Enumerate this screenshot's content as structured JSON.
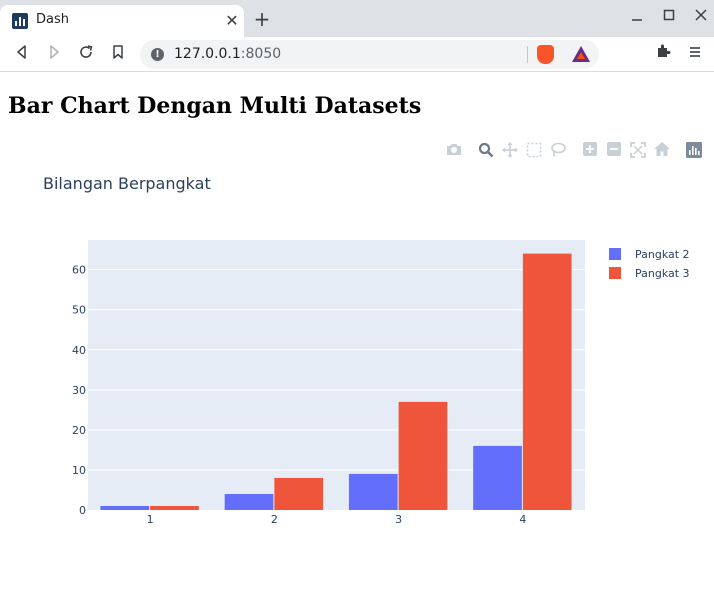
{
  "browser": {
    "tab_title": "Dash",
    "tab_close": "✕",
    "new_tab": "+",
    "url_host": "127.0.0.1",
    "url_port": ":8050",
    "window_controls": [
      "minimize-icon",
      "maximize-icon",
      "close-icon"
    ]
  },
  "page": {
    "heading": "Bar Chart Dengan Multi Datasets"
  },
  "modebar": {
    "buttons": [
      "camera-icon",
      "zoom-icon",
      "pan-icon",
      "box-select-icon",
      "lasso-icon",
      "zoom-in-icon",
      "zoom-out-icon",
      "autoscale-icon",
      "reset-axes-icon",
      "plotly-logo-icon"
    ]
  },
  "colors": {
    "series1": "#636efa",
    "series2": "#ef553b",
    "plot_bg": "#e5ecf6",
    "text": "#2a3f5f"
  },
  "chart_data": {
    "type": "bar",
    "title": "Bilangan Berpangkat",
    "categories": [
      "1",
      "2",
      "3",
      "4"
    ],
    "series": [
      {
        "name": "Pangkat 2",
        "values": [
          1,
          4,
          9,
          16
        ]
      },
      {
        "name": "Pangkat 3",
        "values": [
          1,
          8,
          27,
          64
        ]
      }
    ],
    "ylim": [
      0,
      67.4
    ],
    "yticks": [
      0,
      10,
      20,
      30,
      40,
      50,
      60
    ],
    "grid": true,
    "legend": "top-right"
  }
}
